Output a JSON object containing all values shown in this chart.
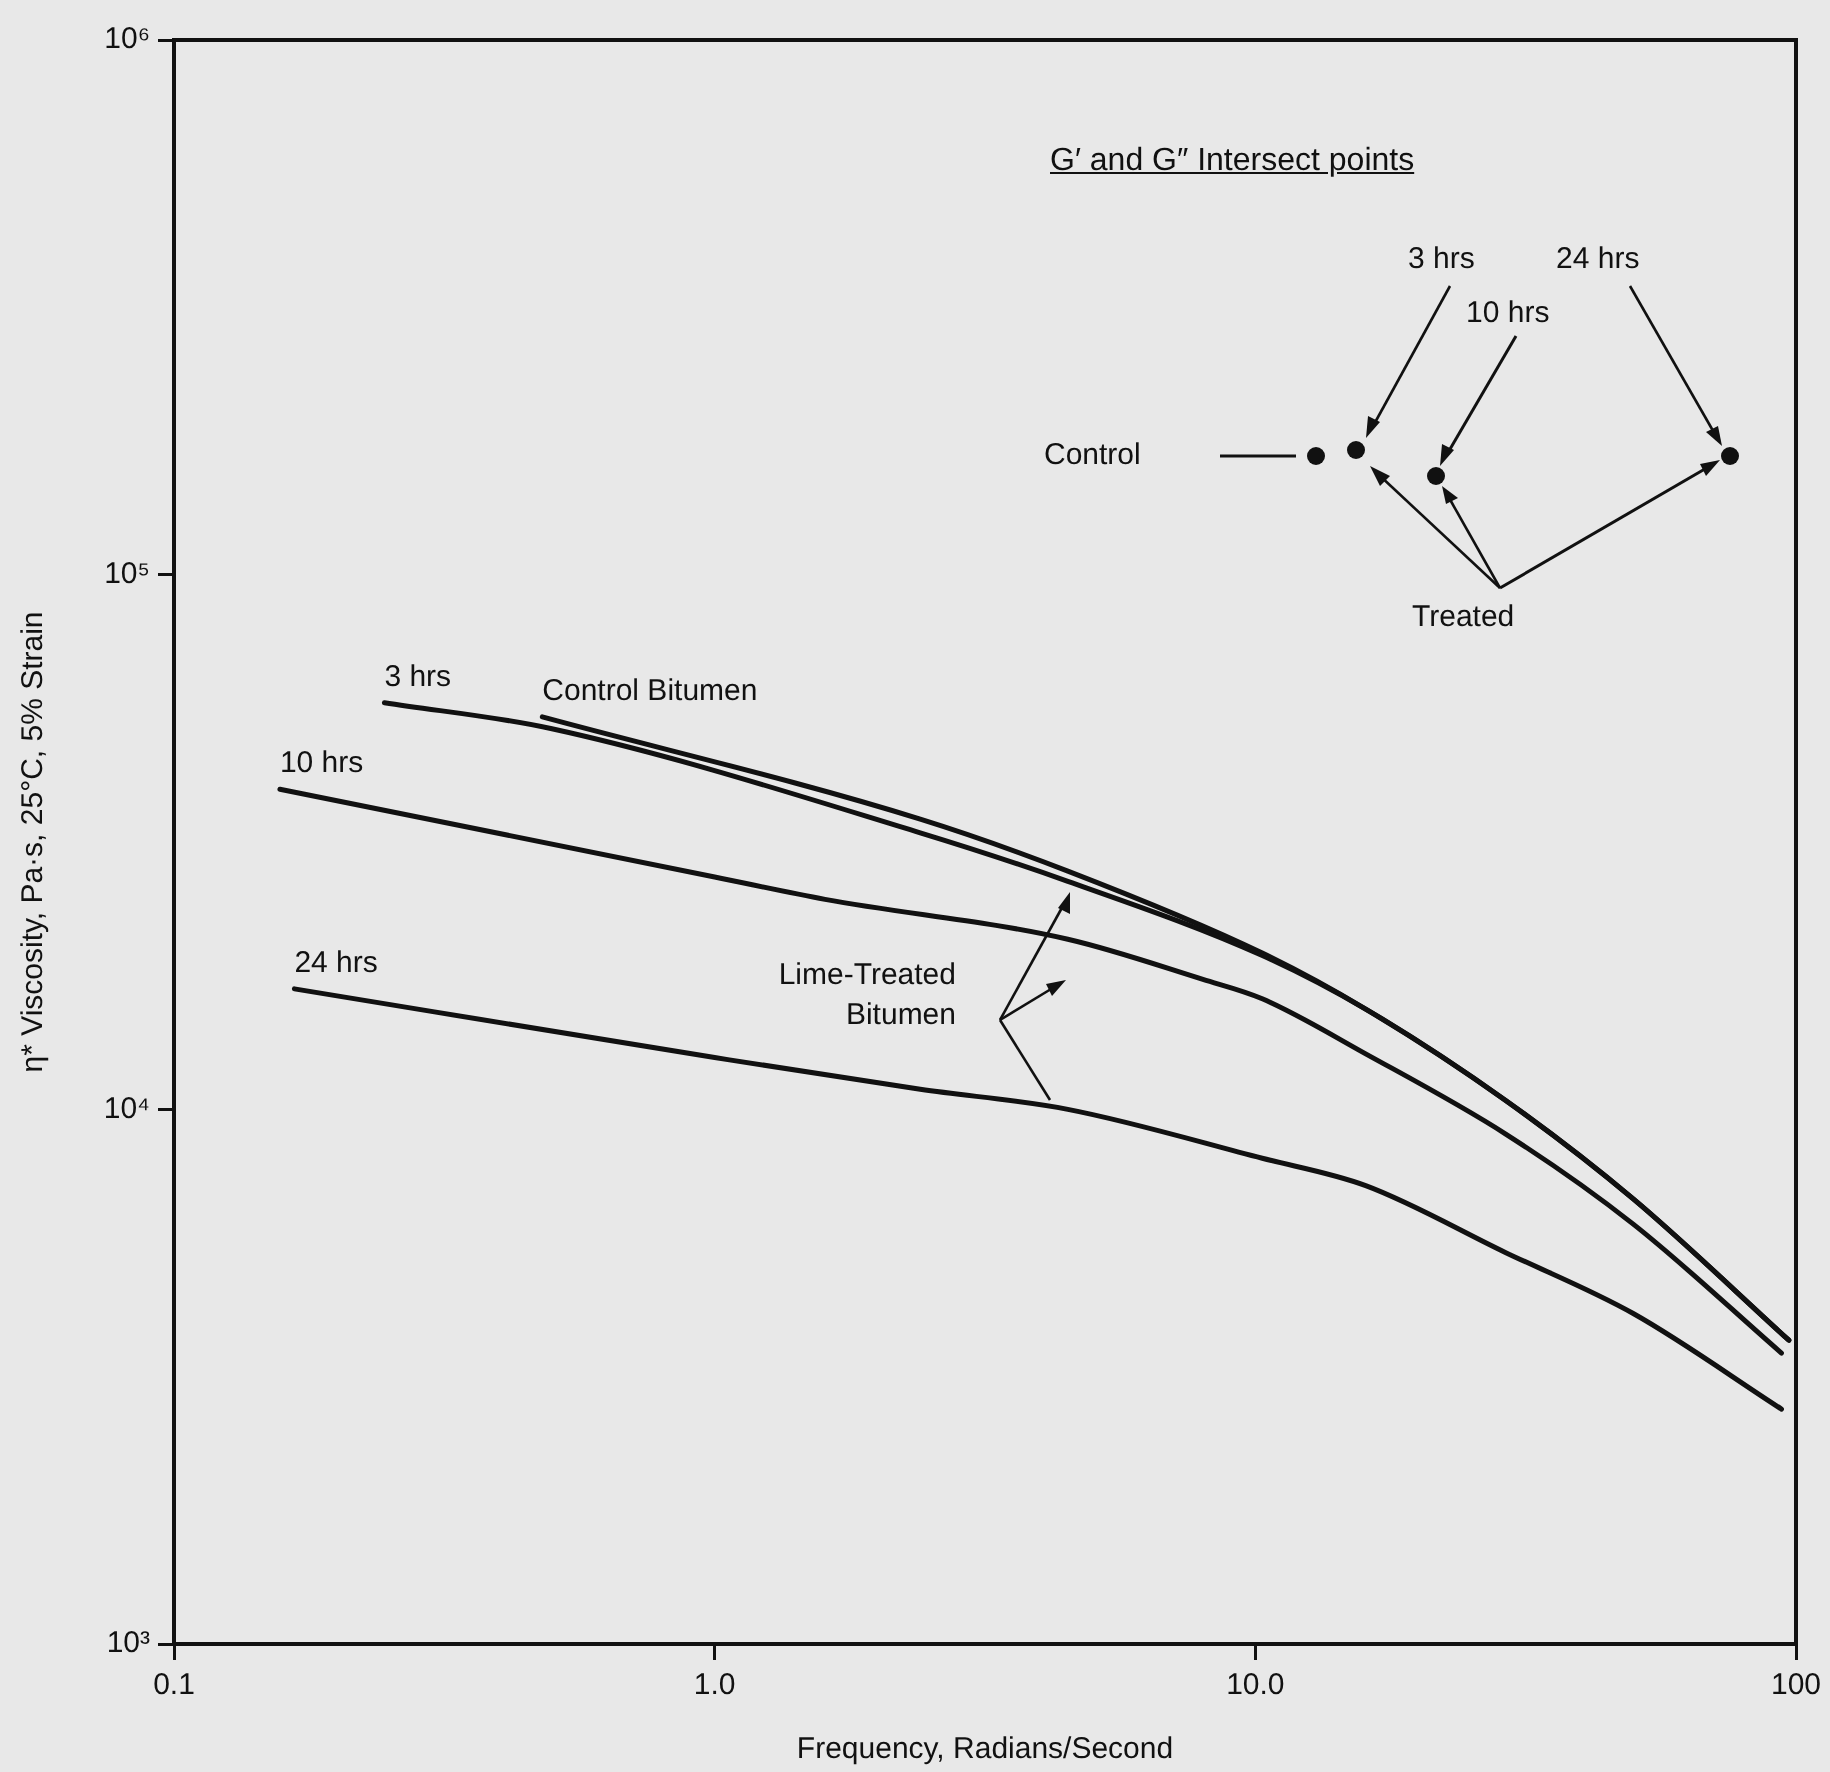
{
  "chart_data": {
    "type": "line",
    "xlabel": "Frequency, Radians/Second",
    "ylabel": "η* Viscosity, Pa·s, 25°C, 5% Strain",
    "log": "xy",
    "grid": false,
    "legend": false,
    "marker": "none",
    "line_style": "solid",
    "xlim": [
      0.1,
      100
    ],
    "xticks": [
      0.1,
      {
        "value": 1,
        "label": "1.0"
      },
      {
        "value": 10,
        "label": "10.0"
      },
      100
    ],
    "ylim": [
      1000,
      1000000
    ],
    "yticks": [
      {
        "value": 1000,
        "label": "10³"
      },
      {
        "value": 10000,
        "label": "10⁴"
      },
      {
        "value": 100000,
        "label": "10⁵"
      },
      {
        "value": 1000000,
        "label": "10⁶"
      }
    ],
    "series": [
      {
        "name": "3 hrs",
        "color": "#111111",
        "x": [
          0.245,
          0.5,
          2.4,
          4.5,
          10.3,
          16,
          29,
          50,
          97
        ],
        "values": [
          57600,
          51500,
          32900,
          26700,
          19400,
          15400,
          10400,
          6800,
          3700
        ]
      },
      {
        "name": "Control Bitumen",
        "color": "#111111",
        "x": [
          0.48,
          2.4,
          4.5,
          10.3,
          16,
          29,
          50,
          97
        ],
        "values": [
          54200,
          34900,
          27900,
          19600,
          15400,
          10400,
          6800,
          3700
        ]
      },
      {
        "name": "10 hrs",
        "color": "#111111",
        "x": [
          0.157,
          1,
          1.6,
          4.5,
          8,
          10.3,
          16,
          29,
          50,
          94
        ],
        "values": [
          39700,
          27200,
          24700,
          20800,
          17500,
          16100,
          12700,
          9000,
          6100,
          3500
        ]
      },
      {
        "name": "24 hrs",
        "color": "#111111",
        "x": [
          0.167,
          1,
          2.4,
          4.5,
          10.3,
          16,
          29,
          50,
          94
        ],
        "values": [
          16800,
          12500,
          10900,
          10000,
          8100,
          7200,
          5400,
          4150,
          2750
        ]
      }
    ],
    "annotations": [
      "G′ and G″ Intersect points",
      "3 hrs",
      "10 hrs",
      "24 hrs",
      "Control",
      "Treated",
      "Lime-Treated Bitumen"
    ]
  }
}
